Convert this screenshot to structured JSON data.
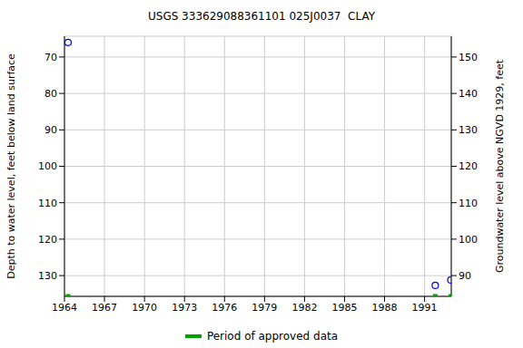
{
  "chart_data": {
    "type": "scatter",
    "title": "USGS 333629088361101 025J0037  CLAY",
    "y_label": "Depth to water level, feet below land surface",
    "y2_label": "Groundwater level above NGVD 1929, feet",
    "xlim": [
      1964,
      1993
    ],
    "xticks": [
      1964,
      1967,
      1970,
      1973,
      1976,
      1979,
      1982,
      1985,
      1988,
      1991
    ],
    "ylim": [
      135.7,
      64.3
    ],
    "yticks": [
      70,
      80,
      90,
      100,
      110,
      120,
      130
    ],
    "y2lim": [
      84.3,
      155.7
    ],
    "y2ticks": [
      90,
      100,
      110,
      120,
      130,
      140,
      150
    ],
    "grid": true,
    "legend": "bottom",
    "series": [
      {
        "color": "#0000ff",
        "marker": "circle",
        "x": [
          1964.27,
          1991.8,
          1992.97
        ],
        "values": [
          66.0,
          132.7,
          131.2
        ]
      },
      {
        "name": "Period of approved data",
        "color": "#00a000",
        "marker": "square",
        "x": [
          1964.27,
          1991.8,
          1992.97
        ]
      }
    ]
  }
}
